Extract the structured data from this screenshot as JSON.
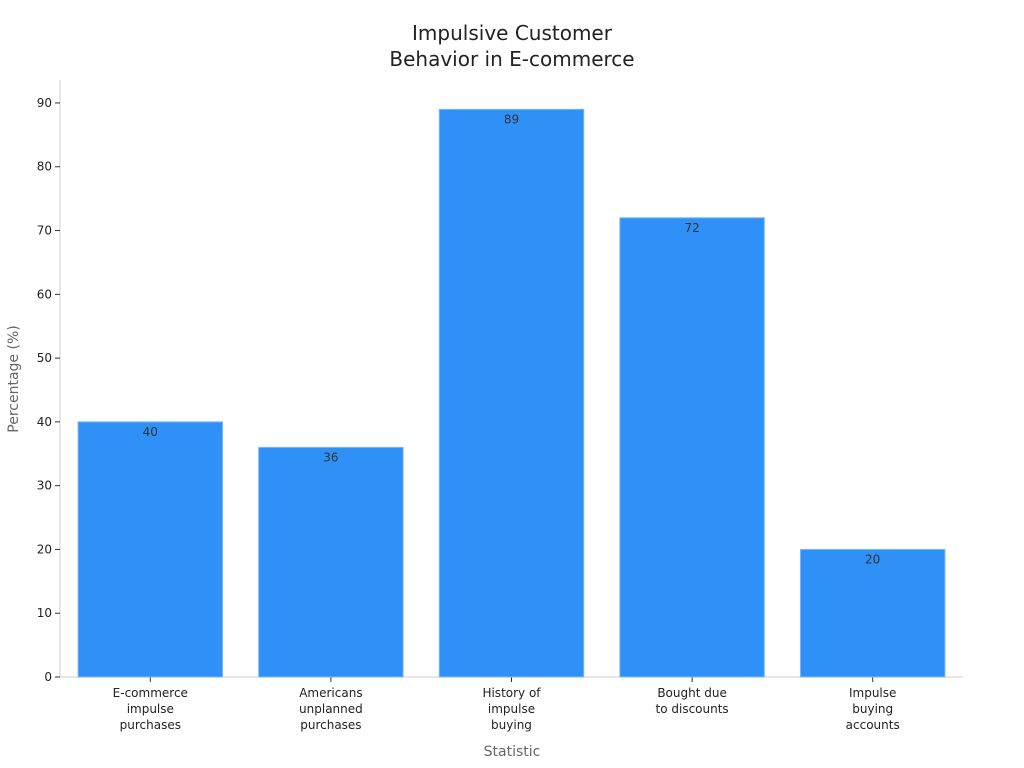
{
  "chart_data": {
    "type": "bar",
    "title": "Impulsive Customer\nBehavior in E-commerce",
    "x_label": "Statistic",
    "y_label": "Percentage (%)",
    "categories": [
      "E-commerce\nimpulse\npurchases",
      "Americans\nunplanned\npurchases",
      "History of\nimpulse\nbuying",
      "Bought due\nto discounts",
      "Impulse\nbuying\naccounts"
    ],
    "values": [
      40,
      36,
      89,
      72,
      20
    ],
    "color": "#2f91f7",
    "ylim": [
      0,
      93.6
    ],
    "yticks": [
      0,
      10,
      20,
      30,
      40,
      50,
      60,
      70,
      80,
      90
    ],
    "grid": false
  }
}
